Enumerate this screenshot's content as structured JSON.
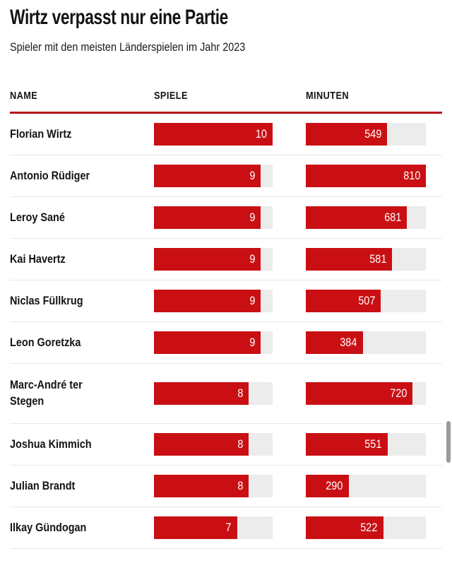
{
  "title": "Wirtz verpasst nur eine Partie",
  "subtitle": "Spieler mit den meisten Länderspielen im Jahr 2023",
  "colors": {
    "bar_red": "#c90f13",
    "rule_red": "#b5121b",
    "track_gray": "#ececec",
    "separator_gray": "#e8e8e8",
    "text_black": "#141414"
  },
  "scales": {
    "spiele_max": 10,
    "minuten_max": 810
  },
  "table": {
    "columns": [
      "NAME",
      "SPIELE",
      "MINUTEN"
    ],
    "rows": [
      {
        "name": "Florian Wirtz",
        "spiele": 10,
        "minuten": 549
      },
      {
        "name": "Antonio Rüdiger",
        "spiele": 9,
        "minuten": 810
      },
      {
        "name": "Leroy Sané",
        "spiele": 9,
        "minuten": 681
      },
      {
        "name": "Kai Havertz",
        "spiele": 9,
        "minuten": 581
      },
      {
        "name": "Niclas Füllkrug",
        "spiele": 9,
        "minuten": 507
      },
      {
        "name": "Leon Goretzka",
        "spiele": 9,
        "minuten": 384
      },
      {
        "name": "Marc-André ter\nStegen",
        "spiele": 8,
        "minuten": 720
      },
      {
        "name": "Joshua Kimmich",
        "spiele": 8,
        "minuten": 551
      },
      {
        "name": "Julian Brandt",
        "spiele": 8,
        "minuten": 290
      },
      {
        "name": "Ilkay Gündogan",
        "spiele": 7,
        "minuten": 522
      }
    ]
  },
  "chart_data": {
    "type": "bar",
    "orientation": "horizontal",
    "title": "Wirtz verpasst nur eine Partie",
    "subtitle": "Spieler mit den meisten Länderspielen im Jahr 2023",
    "categories": [
      "Florian Wirtz",
      "Antonio Rüdiger",
      "Leroy Sané",
      "Kai Havertz",
      "Niclas Füllkrug",
      "Leon Goretzka",
      "Marc-André ter Stegen",
      "Joshua Kimmich",
      "Julian Brandt",
      "Ilkay Gündogan"
    ],
    "series": [
      {
        "name": "Spiele",
        "values": [
          10,
          9,
          9,
          9,
          9,
          9,
          8,
          8,
          8,
          7
        ],
        "xlim": [
          0,
          10
        ]
      },
      {
        "name": "Minuten",
        "values": [
          549,
          810,
          681,
          581,
          507,
          384,
          720,
          551,
          290,
          522
        ],
        "xlim": [
          0,
          810
        ]
      }
    ],
    "value_labels": "inside-end",
    "bar_color": "#c90f13",
    "track_color": "#ececec",
    "grid": false,
    "legend_position": "column-headers"
  }
}
